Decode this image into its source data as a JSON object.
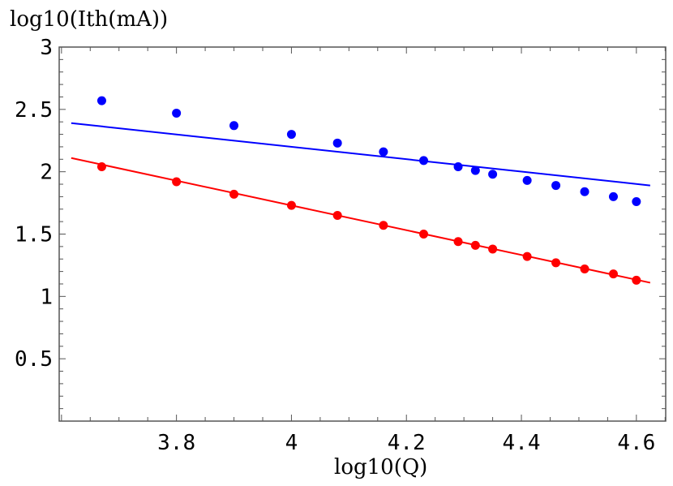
{
  "chart_data": {
    "type": "scatter",
    "ylabel": "log10(Ith(mA))",
    "xlabel": "log10(Q)",
    "xlim": [
      3.596,
      4.651
    ],
    "ylim": [
      0,
      3
    ],
    "xticks": [
      "3.8",
      "4",
      "4.2",
      "4.4",
      "4.6"
    ],
    "xtick_values": [
      3.8,
      4.0,
      4.2,
      4.4,
      4.6
    ],
    "yticks": [
      "3",
      "2.5",
      "2",
      "1.5",
      "1",
      "0.5"
    ],
    "ytick_values": [
      3,
      2.5,
      2,
      1.5,
      1,
      0.5
    ],
    "grid": false,
    "x": [
      3.67,
      3.8,
      3.9,
      4.0,
      4.08,
      4.16,
      4.23,
      4.29,
      4.32,
      4.35,
      4.41,
      4.46,
      4.51,
      4.56,
      4.6
    ],
    "series": [
      {
        "color": "#0000ff",
        "values": [
          2.57,
          2.47,
          2.37,
          2.3,
          2.23,
          2.16,
          2.09,
          2.04,
          2.01,
          1.98,
          1.93,
          1.89,
          1.84,
          1.8,
          1.76
        ],
        "fit_line": {
          "x": [
            3.617,
            4.624
          ],
          "y": [
            2.39,
            1.89
          ]
        }
      },
      {
        "color": "#ff0000",
        "values": [
          2.04,
          1.92,
          1.82,
          1.73,
          1.65,
          1.57,
          1.5,
          1.44,
          1.41,
          1.38,
          1.32,
          1.27,
          1.22,
          1.18,
          1.13
        ],
        "fit_line": {
          "x": [
            3.617,
            4.624
          ],
          "y": [
            2.11,
            1.11
          ]
        }
      }
    ]
  }
}
